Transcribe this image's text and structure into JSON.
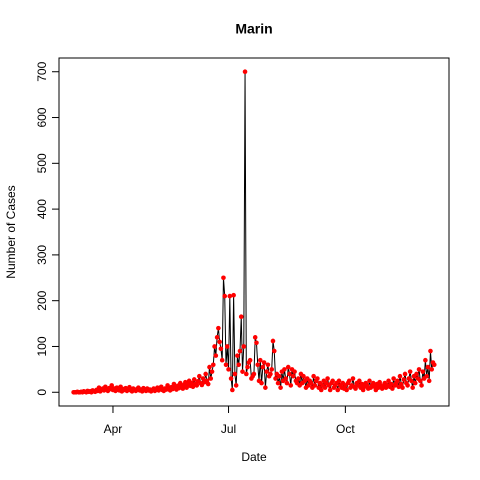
{
  "chart_data": {
    "type": "line",
    "title": "Marin",
    "xlabel": "Date",
    "ylabel": "Number of Cases",
    "x": [
      61,
      62,
      63,
      64,
      65,
      66,
      67,
      68,
      69,
      70,
      71,
      72,
      73,
      74,
      75,
      76,
      77,
      78,
      79,
      80,
      81,
      82,
      83,
      84,
      85,
      86,
      87,
      88,
      89,
      90,
      91,
      92,
      93,
      94,
      95,
      96,
      97,
      98,
      99,
      100,
      101,
      102,
      103,
      104,
      105,
      106,
      107,
      108,
      109,
      110,
      111,
      112,
      113,
      114,
      115,
      116,
      117,
      118,
      119,
      120,
      121,
      122,
      123,
      124,
      125,
      126,
      127,
      128,
      129,
      130,
      131,
      132,
      133,
      134,
      135,
      136,
      137,
      138,
      139,
      140,
      141,
      142,
      143,
      144,
      145,
      146,
      147,
      148,
      149,
      150,
      151,
      152,
      153,
      154,
      155,
      156,
      157,
      158,
      159,
      160,
      161,
      162,
      163,
      164,
      165,
      166,
      167,
      168,
      169,
      170,
      171,
      172,
      173,
      174,
      175,
      176,
      177,
      178,
      179,
      180,
      181,
      182,
      183,
      184,
      185,
      186,
      187,
      188,
      189,
      190,
      191,
      192,
      193,
      194,
      195,
      196,
      197,
      198,
      199,
      200,
      201,
      202,
      203,
      204,
      205,
      206,
      207,
      208,
      209,
      210,
      211,
      212,
      213,
      214,
      215,
      216,
      217,
      218,
      219,
      220,
      221,
      222,
      223,
      224,
      225,
      226,
      227,
      228,
      229,
      230,
      231,
      232,
      233,
      234,
      235,
      236,
      237,
      238,
      239,
      240,
      241,
      242,
      243,
      244,
      245,
      246,
      247,
      248,
      249,
      250,
      251,
      252,
      253,
      254,
      255,
      256,
      257,
      258,
      259,
      260,
      261,
      262,
      263,
      264,
      265,
      266,
      267,
      268,
      269,
      270,
      271,
      272,
      273,
      274,
      275,
      276,
      277,
      278,
      279,
      280,
      281,
      282,
      283,
      284,
      285,
      286,
      287,
      288,
      289,
      290,
      291,
      292,
      293,
      294,
      295,
      296,
      297,
      298,
      299,
      300,
      301,
      302,
      303,
      304,
      305,
      306,
      307,
      308,
      309,
      310,
      311,
      312,
      313,
      314,
      315,
      316,
      317,
      318,
      319,
      320,
      321,
      322,
      323,
      324,
      325,
      326,
      327,
      328,
      329,
      330,
      331,
      332,
      333,
      334,
      335,
      336,
      337,
      338,
      339,
      340,
      341,
      342,
      343,
      344,
      345
    ],
    "series": [
      {
        "name": "Number of Cases",
        "line_color": "#000000",
        "color": "#ff0000",
        "values": [
          0,
          0,
          0,
          1,
          0,
          0,
          1,
          0,
          2,
          1,
          0,
          3,
          1,
          2,
          0,
          4,
          2,
          1,
          5,
          3,
          10,
          2,
          6,
          8,
          4,
          12,
          6,
          3,
          9,
          7,
          15,
          5,
          8,
          3,
          10,
          6,
          4,
          12,
          2,
          7,
          5,
          9,
          3,
          6,
          11,
          4,
          2,
          8,
          5,
          3,
          7,
          10,
          4,
          6,
          2,
          9,
          5,
          3,
          8,
          4,
          6,
          2,
          5,
          8,
          3,
          6,
          10,
          4,
          7,
          12,
          5,
          3,
          8,
          6,
          15,
          9,
          4,
          11,
          7,
          18,
          10,
          6,
          14,
          9,
          20,
          12,
          8,
          16,
          22,
          10,
          18,
          25,
          14,
          20,
          12,
          28,
          18,
          15,
          24,
          35,
          20,
          16,
          30,
          22,
          40,
          25,
          18,
          55,
          30,
          45,
          60,
          100,
          80,
          120,
          140,
          110,
          95,
          70,
          250,
          210,
          60,
          100,
          50,
          210,
          30,
          5,
          212,
          40,
          15,
          80,
          60,
          90,
          165,
          45,
          100,
          700,
          40,
          55,
          65,
          70,
          30,
          35,
          40,
          120,
          108,
          60,
          25,
          70,
          20,
          55,
          65,
          10,
          45,
          60,
          35,
          40,
          50,
          112,
          90,
          30,
          40,
          20,
          35,
          10,
          45,
          25,
          50,
          30,
          20,
          55,
          40,
          15,
          50,
          35,
          45,
          25,
          20,
          30,
          15,
          40,
          20,
          35,
          25,
          10,
          30,
          15,
          25,
          20,
          10,
          35,
          15,
          25,
          30,
          10,
          20,
          5,
          15,
          25,
          10,
          20,
          30,
          15,
          5,
          20,
          25,
          10,
          15,
          20,
          5,
          25,
          15,
          10,
          20,
          8,
          15,
          5,
          20,
          25,
          10,
          15,
          30,
          12,
          8,
          20,
          15,
          25,
          10,
          18,
          5,
          12,
          20,
          15,
          8,
          25,
          10,
          15,
          20,
          12,
          5,
          18,
          10,
          22,
          15,
          8,
          12,
          20,
          10,
          15,
          25,
          12,
          18,
          8,
          30,
          15,
          20,
          25,
          12,
          35,
          18,
          10,
          28,
          40,
          20,
          15,
          30,
          45,
          25,
          10,
          35,
          20,
          40,
          30,
          50,
          25,
          15,
          45,
          30,
          70,
          35,
          55,
          25,
          90,
          50,
          65,
          60
        ]
      }
    ],
    "xlim": [
      49.5,
      356.6
    ],
    "xticks": [
      {
        "value": 92,
        "label": "Apr"
      },
      {
        "value": 183,
        "label": "Jul"
      },
      {
        "value": 275,
        "label": "Oct"
      }
    ],
    "ylim": [
      -30,
      730
    ],
    "yticks": [
      0,
      100,
      200,
      300,
      400,
      500,
      600,
      700
    ]
  }
}
